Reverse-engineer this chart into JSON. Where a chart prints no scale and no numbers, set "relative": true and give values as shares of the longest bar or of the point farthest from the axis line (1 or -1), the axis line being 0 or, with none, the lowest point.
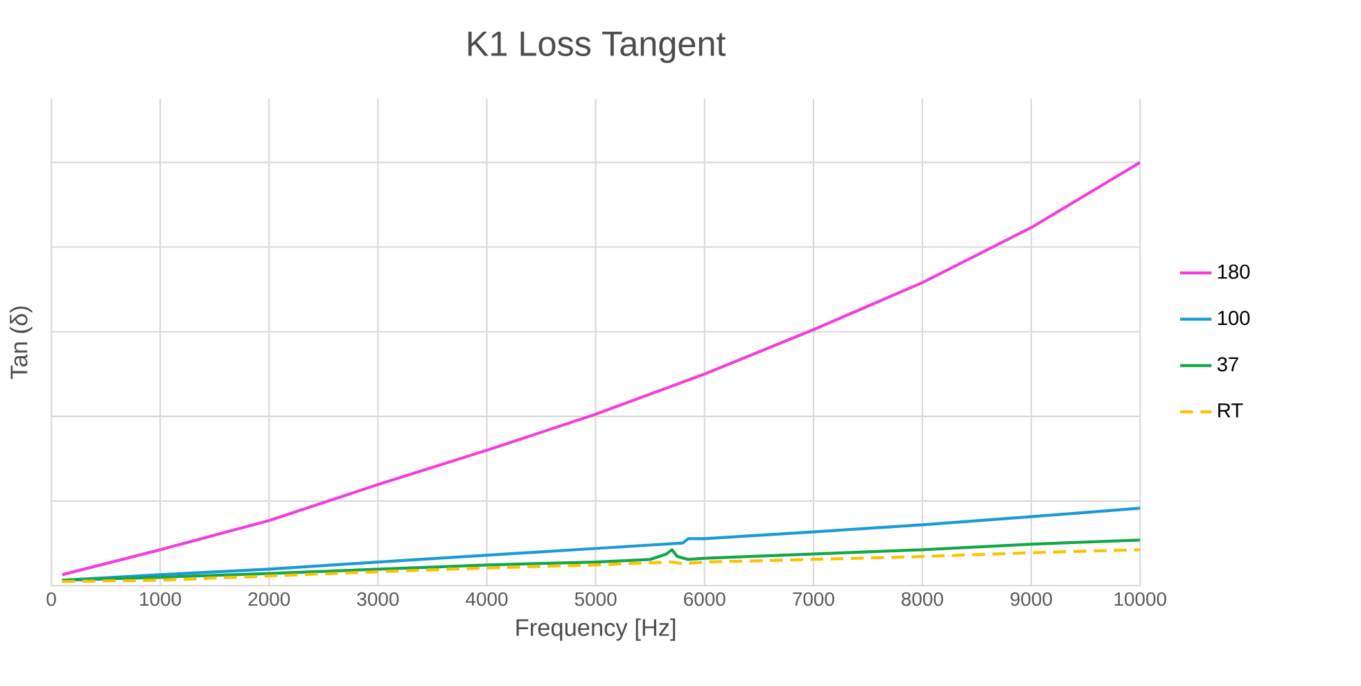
{
  "chart_data": {
    "type": "line",
    "title": "K1 Loss Tangent",
    "xlabel": "Frequency [Hz]",
    "ylabel": "Tan (δ)",
    "relative": true,
    "xlim": [
      0,
      10000
    ],
    "xticks": [
      0,
      1000,
      2000,
      3000,
      4000,
      5000,
      6000,
      7000,
      8000,
      9000,
      10000
    ],
    "grid": true,
    "legend": "right",
    "marker": "none",
    "series": [
      {
        "name": "180",
        "color": "#f23fdb",
        "line_style": "solid",
        "x": [
          100,
          1000,
          2000,
          3000,
          4000,
          5000,
          6000,
          7000,
          8000,
          9000,
          10000
        ],
        "values": [
          0.026,
          0.085,
          0.154,
          0.239,
          0.32,
          0.405,
          0.5,
          0.605,
          0.716,
          0.846,
          1
        ]
      },
      {
        "name": "100",
        "color": "#1a9ad6",
        "line_style": "solid",
        "x": [
          100,
          1000,
          2000,
          3000,
          4000,
          5000,
          5800,
          5850,
          6000,
          7000,
          8000,
          9000,
          10000
        ],
        "values": [
          0.013,
          0.026,
          0.039,
          0.056,
          0.072,
          0.088,
          0.101,
          0.111,
          0.111,
          0.127,
          0.144,
          0.163,
          0.183
        ]
      },
      {
        "name": "37",
        "color": "#12a84a",
        "line_style": "solid",
        "x": [
          100,
          1000,
          2000,
          3000,
          4000,
          5000,
          5500,
          5650,
          5700,
          5750,
          5850,
          6000,
          7000,
          8000,
          9000,
          10000
        ],
        "values": [
          0.013,
          0.02,
          0.029,
          0.039,
          0.049,
          0.056,
          0.062,
          0.075,
          0.085,
          0.069,
          0.062,
          0.065,
          0.075,
          0.085,
          0.098,
          0.108
        ]
      },
      {
        "name": "RT",
        "color": "#ffc000",
        "line_style": "dashed",
        "x": [
          100,
          1000,
          2000,
          3000,
          4000,
          5000,
          5700,
          5800,
          6000,
          7000,
          8000,
          9000,
          10000
        ],
        "values": [
          0.01,
          0.013,
          0.023,
          0.033,
          0.042,
          0.049,
          0.056,
          0.052,
          0.056,
          0.062,
          0.069,
          0.078,
          0.085
        ]
      }
    ]
  }
}
